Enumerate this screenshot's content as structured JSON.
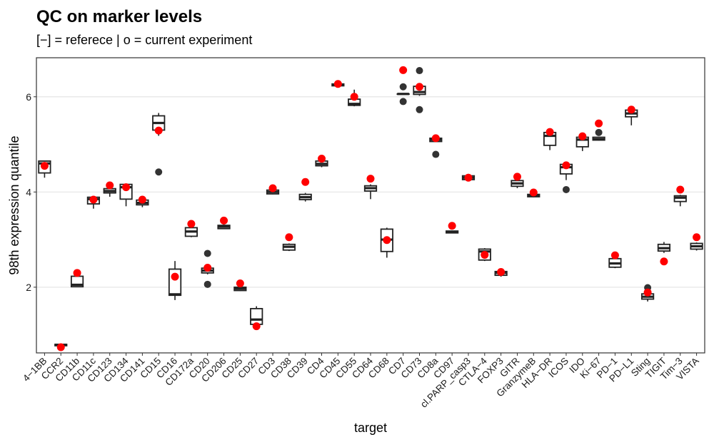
{
  "title": "QC on marker levels",
  "subtitle": "[−] = referece | o = current experiment",
  "chart_data": {
    "type": "boxplot",
    "xlabel": "target",
    "ylabel": "98th expression quantile",
    "ylim": [
      0.62,
      6.82
    ],
    "y_ticks": [
      2,
      4,
      6
    ],
    "grid": "horizontal major",
    "colors": {
      "box": "#222222",
      "current": "#ff0000",
      "outlier": "#333333",
      "grid": "#e5e5e5",
      "panel_border": "#333333"
    },
    "categories": [
      "4−1BB",
      "CCR2",
      "CD11b",
      "CD11c",
      "CD123",
      "CD134",
      "CD141",
      "CD15",
      "CD16",
      "CD172a",
      "CD20",
      "CD206",
      "CD25",
      "CD27",
      "CD3",
      "CD38",
      "CD39",
      "CD4",
      "CD45",
      "CD55",
      "CD64",
      "CD68",
      "CD7",
      "CD73",
      "CD8a",
      "CD97",
      "cl.PARP_casp3",
      "CTLA−4",
      "FOXP3",
      "GITR",
      "GranzymeB",
      "HLA−DR",
      "ICOS",
      "IDO",
      "Ki−67",
      "PD−1",
      "PD−L1",
      "Sting",
      "TIGIT",
      "Tim−3",
      "VISTA"
    ],
    "reference_boxes": [
      {
        "min": 4.3,
        "q1": 4.4,
        "median": 4.6,
        "q3": 4.65,
        "max": 4.66,
        "outliers": []
      },
      {
        "min": 0.76,
        "q1": 0.77,
        "median": 0.79,
        "q3": 0.8,
        "max": 0.81,
        "outliers": []
      },
      {
        "min": 2.0,
        "q1": 2.01,
        "median": 2.05,
        "q3": 2.23,
        "max": 2.25,
        "outliers": []
      },
      {
        "min": 3.65,
        "q1": 3.75,
        "median": 3.85,
        "q3": 3.89,
        "max": 3.9,
        "outliers": []
      },
      {
        "min": 3.9,
        "q1": 3.98,
        "median": 4.02,
        "q3": 4.07,
        "max": 4.08,
        "outliers": []
      },
      {
        "min": 3.7,
        "q1": 3.85,
        "median": 4.1,
        "q3": 4.16,
        "max": 4.17,
        "outliers": []
      },
      {
        "min": 3.68,
        "q1": 3.73,
        "median": 3.77,
        "q3": 3.83,
        "max": 3.84,
        "outliers": []
      },
      {
        "min": 5.18,
        "q1": 5.3,
        "median": 5.45,
        "q3": 5.6,
        "max": 5.66,
        "outliers": [
          4.42
        ]
      },
      {
        "min": 1.73,
        "q1": 1.83,
        "median": 1.85,
        "q3": 2.38,
        "max": 2.55,
        "outliers": []
      },
      {
        "min": 3.05,
        "q1": 3.07,
        "median": 3.17,
        "q3": 3.25,
        "max": 3.27,
        "outliers": []
      },
      {
        "min": 2.27,
        "q1": 2.3,
        "median": 2.35,
        "q3": 2.4,
        "max": 2.42,
        "outliers": [
          2.71,
          2.06
        ]
      },
      {
        "min": 3.22,
        "q1": 3.23,
        "median": 3.27,
        "q3": 3.3,
        "max": 3.32,
        "outliers": []
      },
      {
        "min": 1.92,
        "q1": 1.93,
        "median": 1.97,
        "q3": 2.0,
        "max": 2.02,
        "outliers": []
      },
      {
        "min": 1.2,
        "q1": 1.22,
        "median": 1.32,
        "q3": 1.55,
        "max": 1.6,
        "outliers": []
      },
      {
        "min": 3.95,
        "q1": 3.96,
        "median": 4.0,
        "q3": 4.04,
        "max": 4.05,
        "outliers": []
      },
      {
        "min": 2.76,
        "q1": 2.78,
        "median": 2.85,
        "q3": 2.9,
        "max": 2.92,
        "outliers": []
      },
      {
        "min": 3.8,
        "q1": 3.84,
        "median": 3.89,
        "q3": 3.95,
        "max": 3.98,
        "outliers": []
      },
      {
        "min": 4.52,
        "q1": 4.55,
        "median": 4.59,
        "q3": 4.65,
        "max": 4.68,
        "outliers": []
      },
      {
        "min": 6.22,
        "q1": 6.23,
        "median": 6.25,
        "q3": 6.27,
        "max": 6.28,
        "outliers": []
      },
      {
        "min": 5.8,
        "q1": 5.82,
        "median": 5.85,
        "q3": 5.95,
        "max": 6.15,
        "outliers": []
      },
      {
        "min": 3.85,
        "q1": 4.02,
        "median": 4.08,
        "q3": 4.13,
        "max": 4.16,
        "outliers": []
      },
      {
        "min": 2.62,
        "q1": 2.75,
        "median": 3.0,
        "q3": 3.22,
        "max": 3.25,
        "outliers": []
      },
      {
        "min": 6.06,
        "q1": 6.06,
        "median": 6.06,
        "q3": 6.06,
        "max": 6.06,
        "outliers": [
          6.21,
          5.9
        ]
      },
      {
        "min": 6.02,
        "q1": 6.05,
        "median": 6.1,
        "q3": 6.22,
        "max": 6.25,
        "outliers": [
          6.55,
          5.73
        ]
      },
      {
        "min": 5.05,
        "q1": 5.06,
        "median": 5.1,
        "q3": 5.13,
        "max": 5.14,
        "outliers": [
          4.79
        ]
      },
      {
        "min": 3.13,
        "q1": 3.14,
        "median": 3.16,
        "q3": 3.18,
        "max": 3.19,
        "outliers": []
      },
      {
        "min": 4.25,
        "q1": 4.26,
        "median": 4.3,
        "q3": 4.34,
        "max": 4.38,
        "outliers": []
      },
      {
        "min": 2.55,
        "q1": 2.57,
        "median": 2.75,
        "q3": 2.8,
        "max": 2.82,
        "outliers": []
      },
      {
        "min": 2.22,
        "q1": 2.25,
        "median": 2.3,
        "q3": 2.33,
        "max": 2.35,
        "outliers": []
      },
      {
        "min": 4.08,
        "q1": 4.12,
        "median": 4.18,
        "q3": 4.24,
        "max": 4.28,
        "outliers": []
      },
      {
        "min": 3.89,
        "q1": 3.9,
        "median": 3.92,
        "q3": 3.95,
        "max": 3.96,
        "outliers": []
      },
      {
        "min": 4.88,
        "q1": 4.98,
        "median": 5.18,
        "q3": 5.25,
        "max": 5.28,
        "outliers": []
      },
      {
        "min": 4.25,
        "q1": 4.38,
        "median": 4.52,
        "q3": 4.58,
        "max": 4.6,
        "outliers": [
          4.05
        ]
      },
      {
        "min": 4.86,
        "q1": 4.95,
        "median": 5.1,
        "q3": 5.15,
        "max": 5.19,
        "outliers": []
      },
      {
        "min": 5.08,
        "q1": 5.09,
        "median": 5.11,
        "q3": 5.15,
        "max": 5.16,
        "outliers": [
          5.25
        ]
      },
      {
        "min": 2.4,
        "q1": 2.42,
        "median": 2.5,
        "q3": 2.6,
        "max": 2.62,
        "outliers": []
      },
      {
        "min": 5.4,
        "q1": 5.58,
        "median": 5.65,
        "q3": 5.72,
        "max": 5.74,
        "outliers": []
      },
      {
        "min": 1.7,
        "q1": 1.75,
        "median": 1.8,
        "q3": 1.86,
        "max": 1.88,
        "outliers": [
          1.99
        ]
      },
      {
        "min": 2.72,
        "q1": 2.76,
        "median": 2.82,
        "q3": 2.9,
        "max": 2.95,
        "outliers": []
      },
      {
        "min": 3.7,
        "q1": 3.8,
        "median": 3.88,
        "q3": 3.92,
        "max": 3.94,
        "outliers": []
      },
      {
        "min": 2.77,
        "q1": 2.8,
        "median": 2.86,
        "q3": 2.92,
        "max": 2.94,
        "outliers": []
      }
    ],
    "current_experiment": [
      4.55,
      0.74,
      2.3,
      3.84,
      4.14,
      4.1,
      3.84,
      5.29,
      2.22,
      3.33,
      2.41,
      3.4,
      2.08,
      1.18,
      4.08,
      3.05,
      4.21,
      4.7,
      6.27,
      6.0,
      4.28,
      2.99,
      6.56,
      6.21,
      5.13,
      3.29,
      4.3,
      2.68,
      2.32,
      4.32,
      3.99,
      5.26,
      4.56,
      5.17,
      5.44,
      2.67,
      5.73,
      1.89,
      2.54,
      4.05,
      3.05
    ]
  }
}
